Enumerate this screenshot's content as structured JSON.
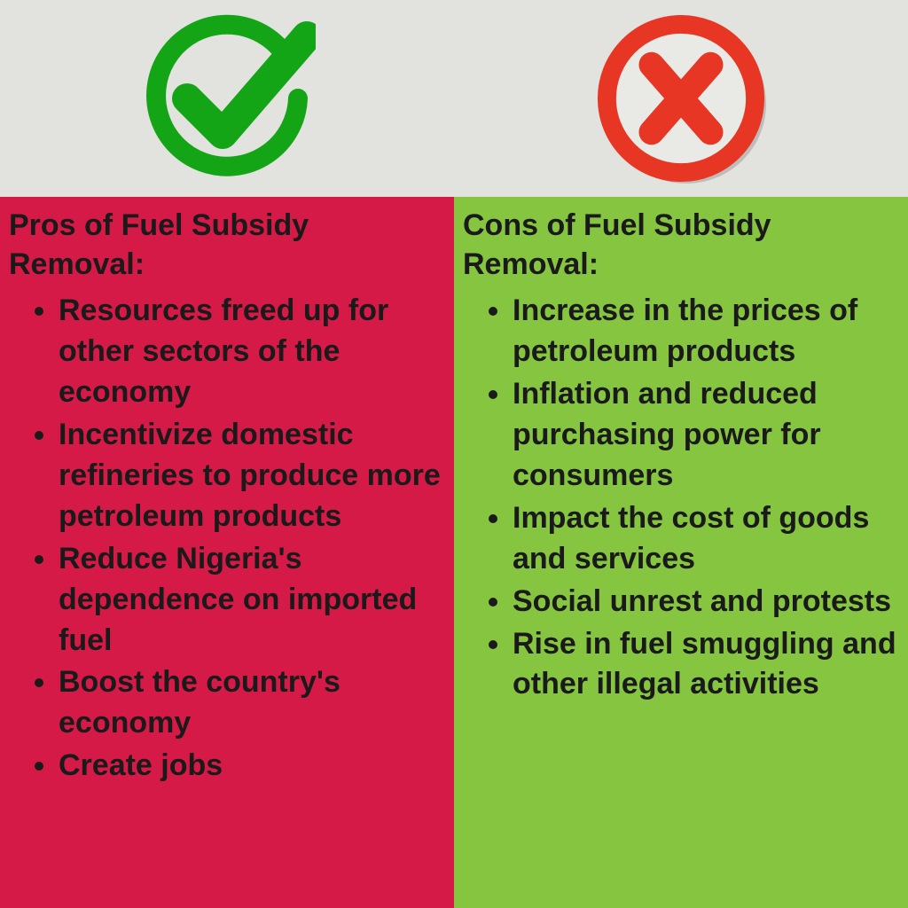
{
  "colors": {
    "header_bg": "#e2e2de",
    "pros_bg": "#d61a47",
    "cons_bg": "#86c540",
    "check_color": "#14a516",
    "x_color": "#e83625",
    "x_ring": "#e83625",
    "x_inner_bg": "#e9e9e5",
    "shadow": "#bdbdb9",
    "text": "#1a1a1a"
  },
  "icons": {
    "check_ring_width": 22,
    "x_ring_width": 22
  },
  "pros": {
    "title": "Pros of Fuel Subsidy Removal:",
    "items": [
      "Resources freed up for other sectors of the economy",
      "Incentivize domestic refineries to produce more petroleum products",
      "Reduce Nigeria's dependence on imported fuel",
      "Boost the country's economy",
      "Create jobs"
    ]
  },
  "cons": {
    "title": "Cons of Fuel Subsidy Removal:",
    "items": [
      "Increase in the prices of petroleum products",
      "Inflation and reduced purchasing power for consumers",
      "Impact the cost of goods and services",
      "Social unrest and protests",
      "Rise in fuel smuggling and other illegal activities"
    ]
  }
}
